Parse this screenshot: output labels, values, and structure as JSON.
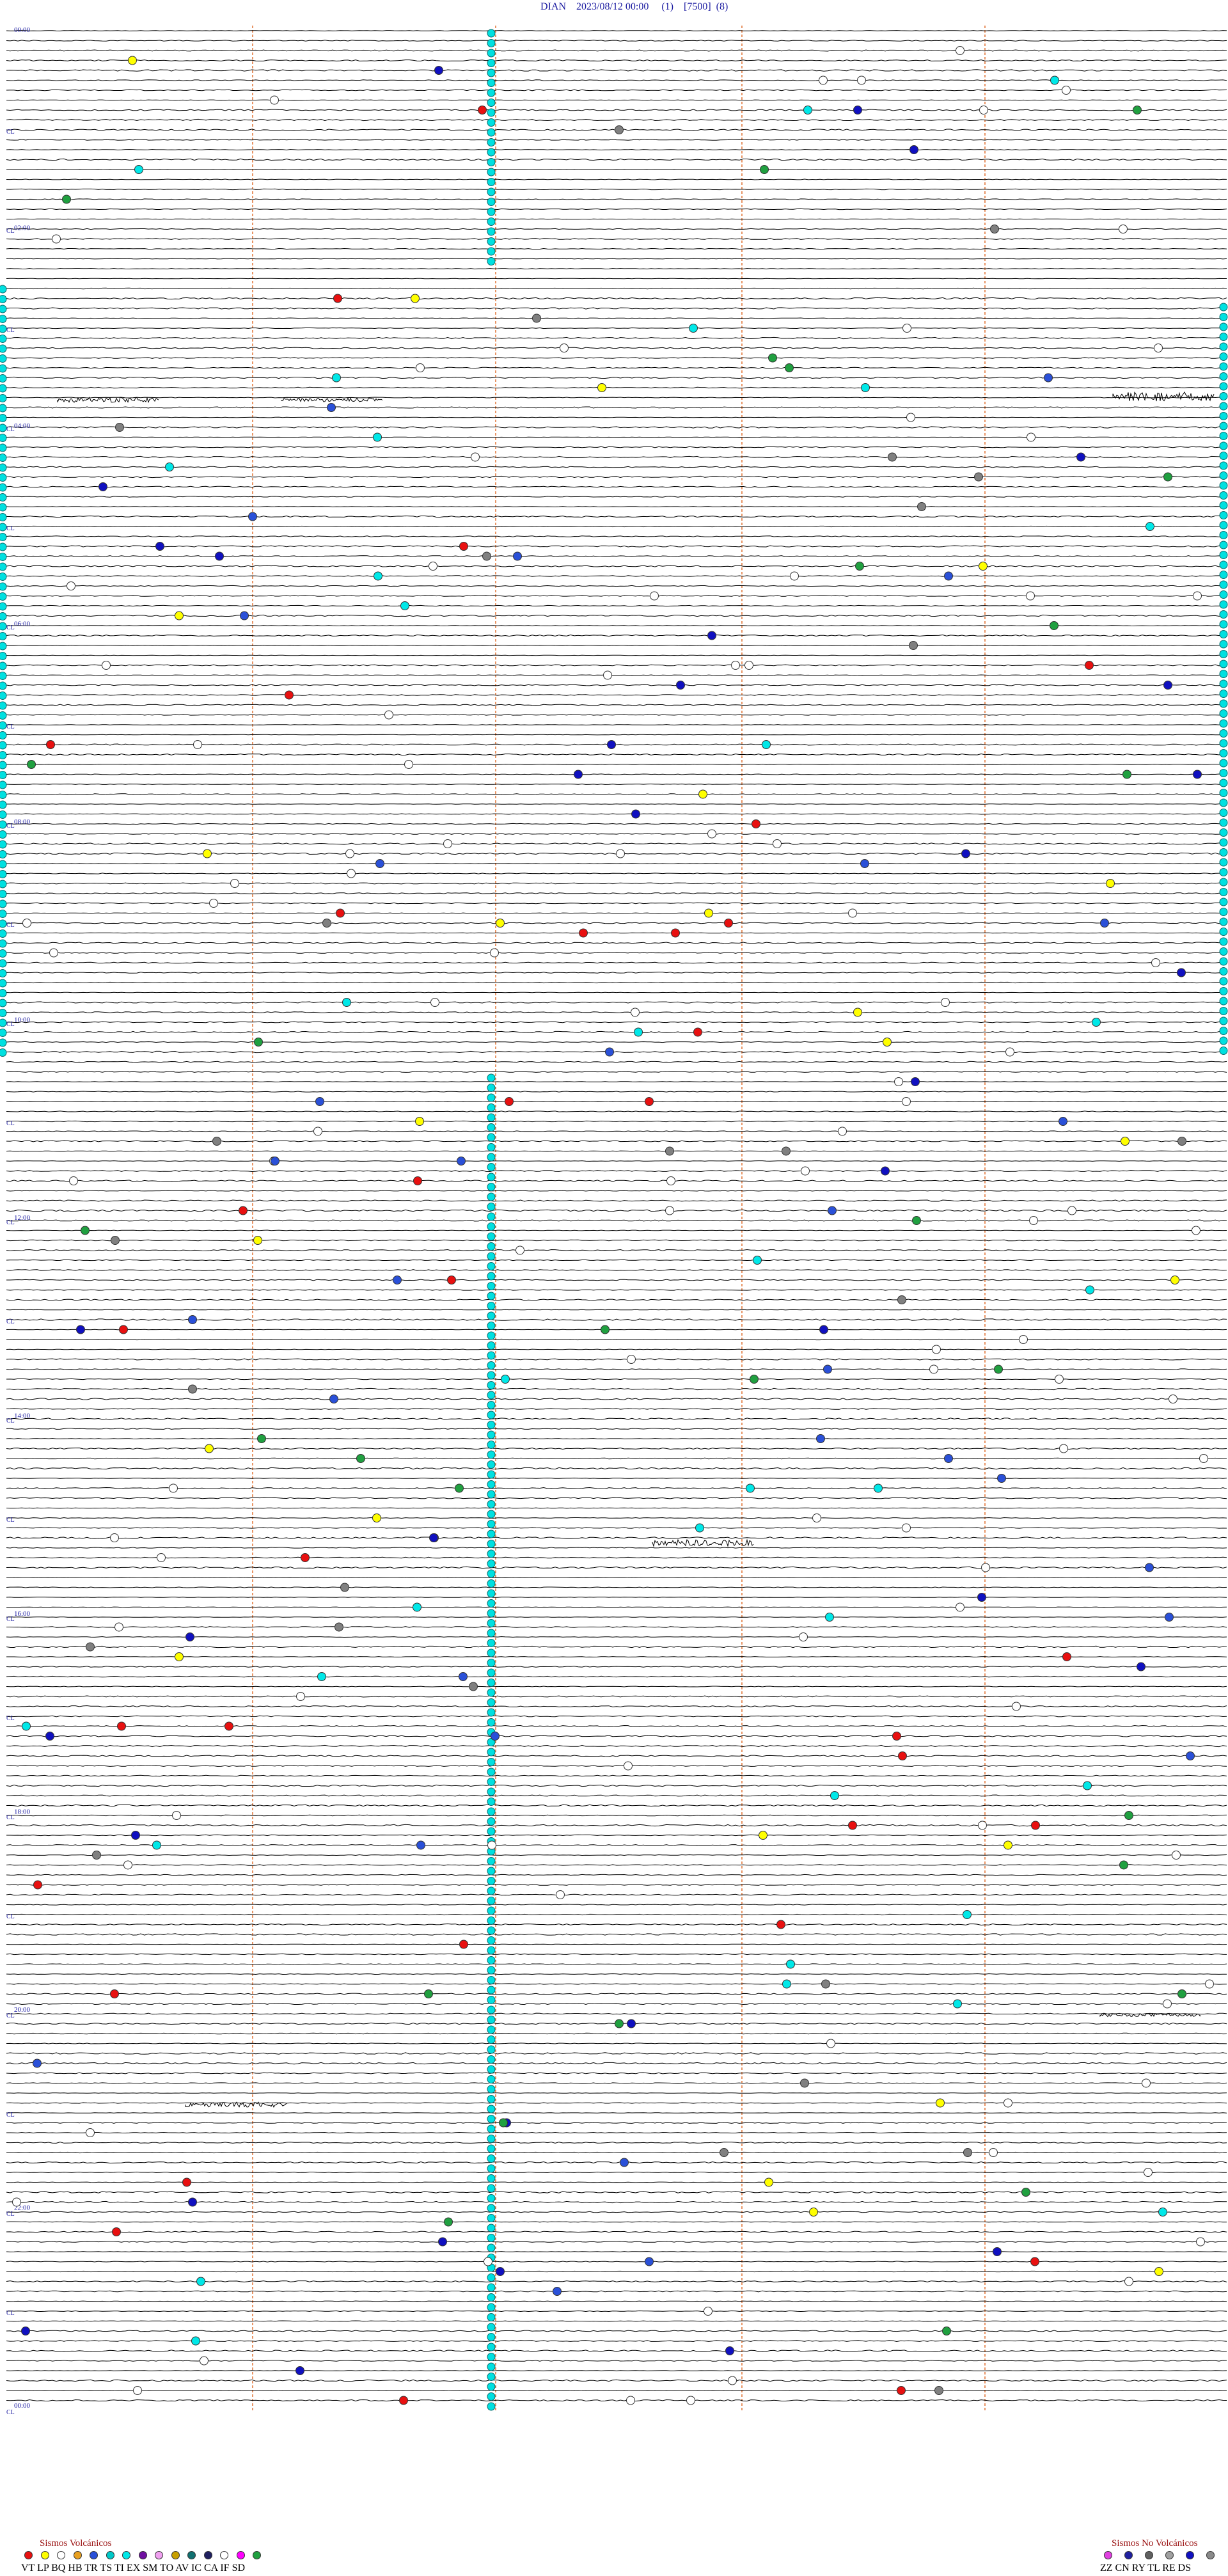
{
  "header": {
    "title": "DIAN    2023/08/12 00:00     (1)    [7500]  (8)"
  },
  "time_labels": [
    "00:00",
    "02:00",
    "04:00",
    "06:00",
    "08:00",
    "10:00",
    "12:00",
    "14:00",
    "16:00",
    "18:00",
    "20:00",
    "22:00",
    "00:00"
  ],
  "row_prefix": "CL",
  "colors": {
    "trace": "#000000",
    "label": "#1a1aa0",
    "guide": "#e07030",
    "background": "#ffffff"
  },
  "legend_volcanic": {
    "title": "Sismos Volcánicos",
    "codes": "VT  LP  BQ  HB  TR  TS  TI   EX  SM  TO  AV  IC   CA  IF   SD",
    "colors": [
      "#e81010",
      "#ffff00",
      "#ffffff",
      "#e8a020",
      "#2a50d8",
      "#00c8c8",
      "#00e8e8",
      "#7010a0",
      "#f0a0f0",
      "#c8a000",
      "#107070",
      "#202060",
      "#ffffff",
      "#ff00ff",
      "#20a040"
    ]
  },
  "legend_nonvolcanic": {
    "title": "Sismos No Volcánicos",
    "codes": "ZZ  CN  RY  TL  RE  DS",
    "colors": [
      "#e040e0",
      "#2020a0",
      "#606060",
      "#a0a0a0",
      "#1010c0",
      "#8a8a8a"
    ]
  }
}
